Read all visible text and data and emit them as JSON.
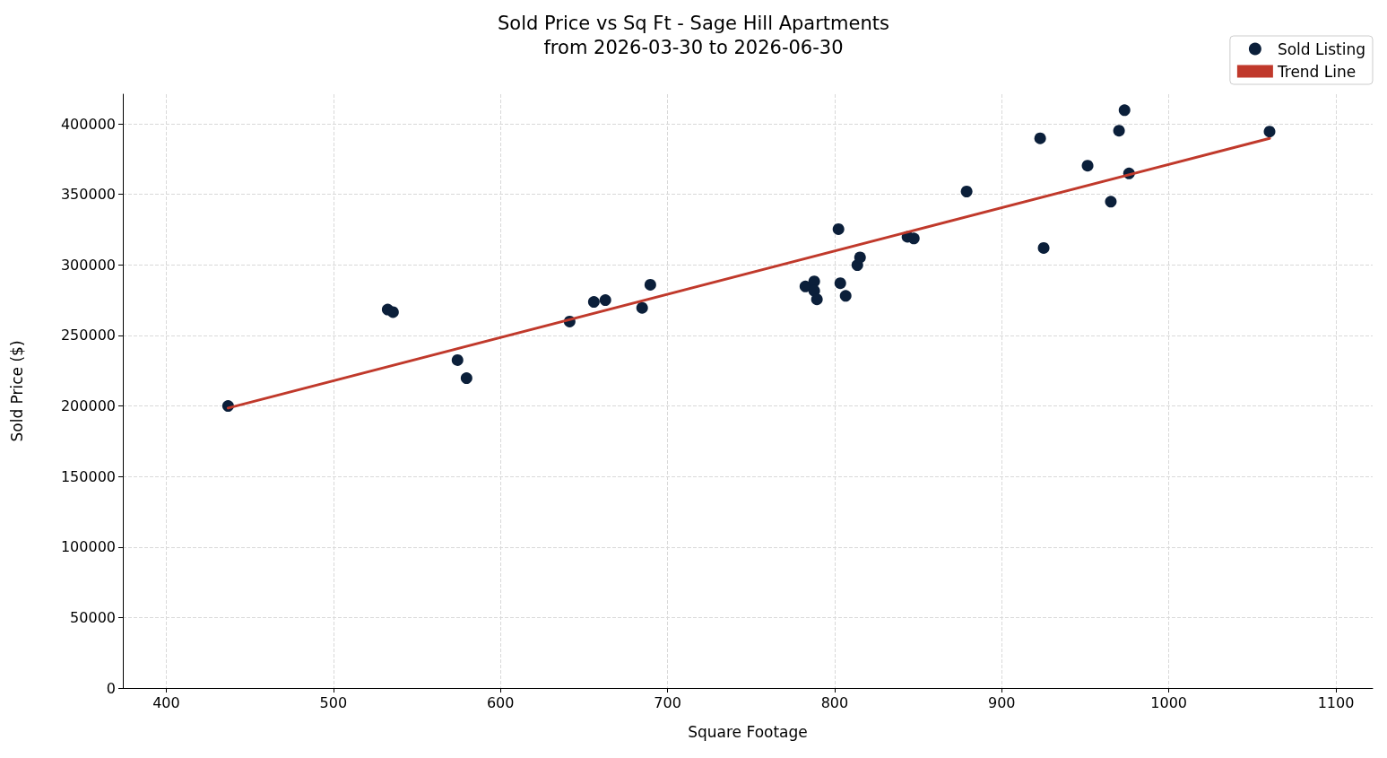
{
  "chart_data": {
    "type": "scatter",
    "title": "Sold Price vs Sq Ft - Sage Hill Apartments",
    "subtitle": "from 2026-03-30 to 2026-06-30",
    "xlabel": "Square Footage",
    "ylabel": "Sold Price ($)",
    "xlim": [
      374,
      1122
    ],
    "xticks": [
      400,
      500,
      600,
      700,
      800,
      900,
      1000,
      1100
    ],
    "ylim": [
      0,
      421000
    ],
    "yticks": [
      0,
      50000,
      100000,
      150000,
      200000,
      250000,
      300000,
      350000,
      400000
    ],
    "grid": true,
    "legend": "top right",
    "marker": "circle",
    "series": [
      {
        "name": "Sold Listing",
        "color": "#0b1f3a",
        "x": [
          437,
          532.5,
          535.7,
          574.3,
          579.7,
          641.4,
          655.9,
          662.8,
          684.8,
          689.7,
          782.5,
          787.8,
          787.8,
          789.4,
          802.3,
          803.4,
          806.6,
          813.6,
          815.2,
          843.6,
          847.4,
          879,
          923,
          925.1,
          951.4,
          965.3,
          970.2,
          973.5,
          976.2,
          1060.3
        ],
        "values": [
          200000,
          268300,
          266500,
          232500,
          219700,
          259800,
          273700,
          275000,
          269500,
          285900,
          284700,
          288300,
          281600,
          275600,
          325300,
          287000,
          278000,
          299800,
          305300,
          319900,
          318700,
          352000,
          389700,
          312000,
          370300,
          344800,
          395100,
          409700,
          364800,
          394500
        ]
      },
      {
        "name": "Trend Line",
        "type": "line",
        "color": "#c0392b",
        "line_style": "solid",
        "marker": "none",
        "x": [
          437,
          1060.3
        ],
        "values": [
          198500,
          389700
        ]
      }
    ]
  }
}
